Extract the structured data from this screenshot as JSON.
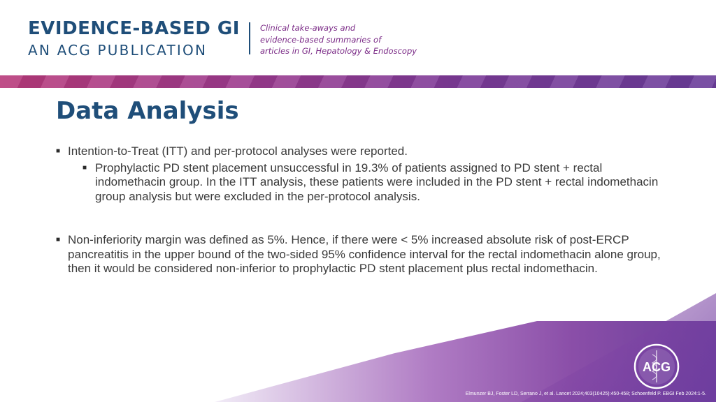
{
  "header": {
    "brand_title": "EVIDENCE-BASED GI",
    "brand_subtitle": "AN ACG PUBLICATION",
    "tagline": [
      "Clinical take-aways and",
      "evidence-based summaries of",
      "articles in GI, Hepatology & Endoscopy"
    ]
  },
  "slide": {
    "title": "Data Analysis",
    "bullets": [
      {
        "text": "Intention-to-Treat (ITT) and per-protocol analyses were reported.",
        "sub": [
          "Prophylactic PD stent placement unsuccessful in 19.3% of patients assigned to PD stent + rectal indomethacin group. In the ITT analysis, these patients were included in the PD stent + rectal indomethacin group analysis but were excluded in the per-protocol analysis."
        ]
      },
      {
        "text": "Non-inferiority margin was defined as 5%. Hence, if there were < 5% increased absolute risk of post-ERCP pancreatitis in the upper bound of the two-sided 95% confidence interval for the rectal indomethacin alone group, then it would be considered non-inferior to prophylactic PD stent placement plus rectal indomethacin."
      }
    ]
  },
  "footer": {
    "citation": "Elmunzer BJ, Foster LD, Serrano J, et al. Lancet 2024;403(10425):450-458; Schoenfeld P. EBGI Feb 2024:1-5.",
    "logo_text": "ACG"
  },
  "colors": {
    "brand_blue": "#1f4e79",
    "accent_purple": "#7a2a86"
  }
}
